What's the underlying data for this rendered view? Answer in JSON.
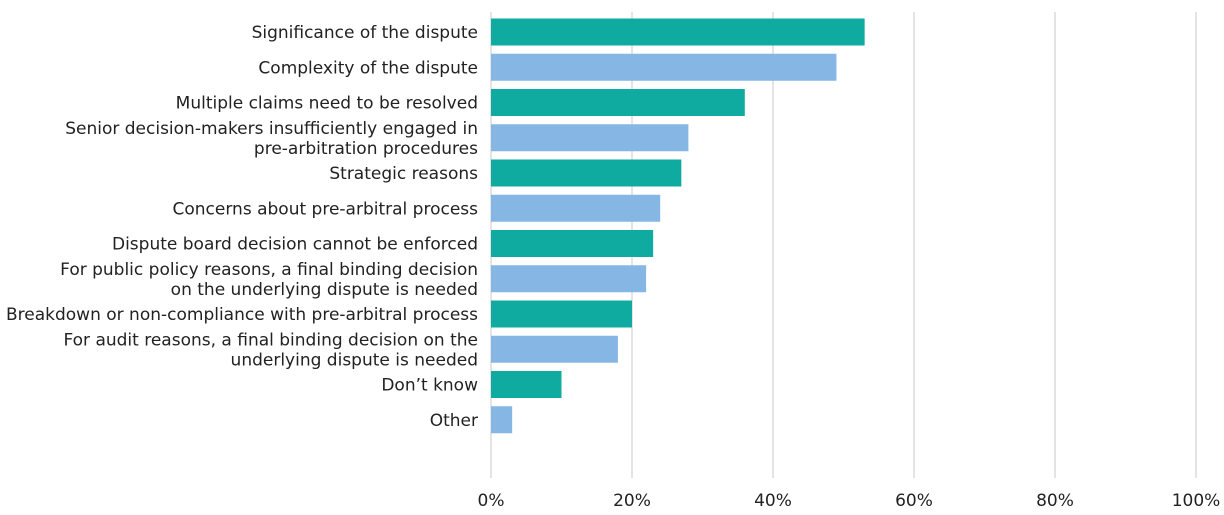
{
  "chart_data": {
    "type": "bar",
    "orientation": "horizontal",
    "categories": [
      [
        "Significance of the dispute"
      ],
      [
        "Complexity of the dispute"
      ],
      [
        "Multiple claims need to be resolved"
      ],
      [
        "Senior decision-makers insufficiently engaged in",
        "pre-arbitration procedures"
      ],
      [
        "Strategic reasons"
      ],
      [
        "Concerns about pre-arbitral process"
      ],
      [
        "Dispute board decision cannot be enforced"
      ],
      [
        "For public policy reasons, a final binding decision",
        "on the underlying dispute is needed"
      ],
      [
        "Breakdown or non-compliance with pre-arbitral process"
      ],
      [
        "For audit reasons, a final binding decision on the",
        "underlying dispute is needed"
      ],
      [
        "Don’t know"
      ],
      [
        "Other"
      ]
    ],
    "values": [
      53,
      49,
      36,
      28,
      27,
      24,
      23,
      22,
      20,
      18,
      10,
      3
    ],
    "xlim": [
      0,
      100
    ],
    "x_ticks": [
      0,
      20,
      40,
      60,
      80,
      100
    ],
    "x_tick_labels": [
      "0%",
      "20%",
      "40%",
      "60%",
      "80%",
      "100%"
    ],
    "bar_colors": [
      "#10ABA0",
      "#86B6E4"
    ],
    "grid": "vertical",
    "title": "",
    "xlabel": "",
    "ylabel": ""
  }
}
